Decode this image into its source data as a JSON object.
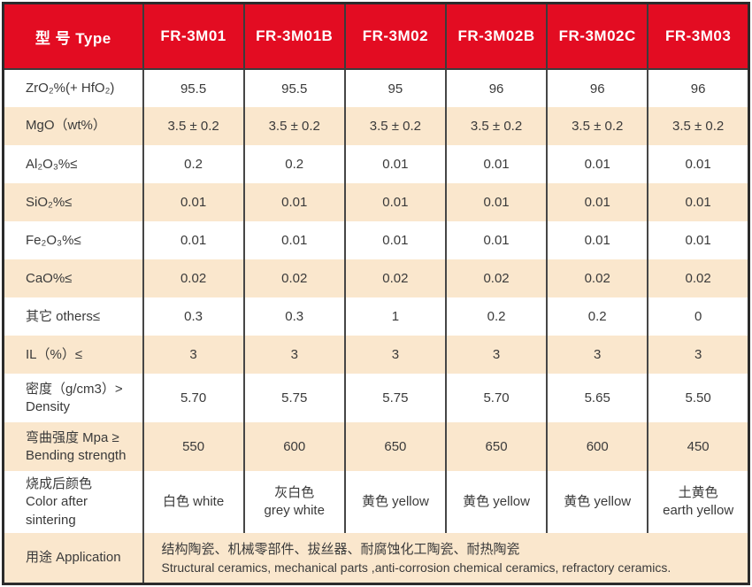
{
  "colors": {
    "header_red": "#e30c22",
    "row_peach": "#fae7cd",
    "grid_line": "#464646",
    "outer_frame": "#2b2b2b",
    "text": "#3a3a3a",
    "header_text": "#ffffff"
  },
  "table": {
    "header": {
      "label": "型 号 Type",
      "columns": [
        "FR-3M01",
        "FR-3M01B",
        "FR-3M02",
        "FR-3M02B",
        "FR-3M02C",
        "FR-3M03"
      ]
    },
    "rows": [
      {
        "label": "ZrO₂%(+ HfO₂)",
        "values": [
          "95.5",
          "95.5",
          "95",
          "96",
          "96",
          "96"
        ]
      },
      {
        "label": "MgO（wt%）",
        "values": [
          "3.5 ± 0.2",
          "3.5 ± 0.2",
          "3.5 ± 0.2",
          "3.5 ± 0.2",
          "3.5 ± 0.2",
          "3.5 ± 0.2"
        ]
      },
      {
        "label": "Al₂O₃%≤",
        "values": [
          "0.2",
          "0.2",
          "0.01",
          "0.01",
          "0.01",
          "0.01"
        ]
      },
      {
        "label": "SiO₂%≤",
        "values": [
          "0.01",
          "0.01",
          "0.01",
          "0.01",
          "0.01",
          "0.01"
        ]
      },
      {
        "label": "Fe₂O₃%≤",
        "values": [
          "0.01",
          "0.01",
          "0.01",
          "0.01",
          "0.01",
          "0.01"
        ]
      },
      {
        "label": "CaO%≤",
        "values": [
          "0.02",
          "0.02",
          "0.02",
          "0.02",
          "0.02",
          "0.02"
        ]
      },
      {
        "label": "其它 others≤",
        "values": [
          "0.3",
          "0.3",
          "1",
          "0.2",
          "0.2",
          "0"
        ]
      },
      {
        "label": "IL（%）≤",
        "values": [
          "3",
          "3",
          "3",
          "3",
          "3",
          "3"
        ]
      },
      {
        "label": "密度（g/cm3）>\nDensity",
        "values": [
          "5.70",
          "5.75",
          "5.75",
          "5.70",
          "5.65",
          "5.50"
        ]
      },
      {
        "label": "弯曲强度 Mpa ≥\nBending strength",
        "values": [
          "550",
          "600",
          "650",
          "650",
          "600",
          "450"
        ]
      },
      {
        "label": "烧成后颜色\nColor after sintering",
        "values": [
          "白色 white",
          "灰白色\ngrey white",
          "黄色 yellow",
          "黄色 yellow",
          "黄色 yellow",
          "土黄色\nearth yellow"
        ]
      }
    ],
    "footer": {
      "label": "用途  Application",
      "line1_cn": "结构陶瓷、机械零部件、拔丝器、耐腐蚀化工陶瓷、耐热陶瓷",
      "line2_en": "Structural ceramics, mechanical parts ,anti-corrosion chemical ceramics, refractory ceramics."
    }
  }
}
